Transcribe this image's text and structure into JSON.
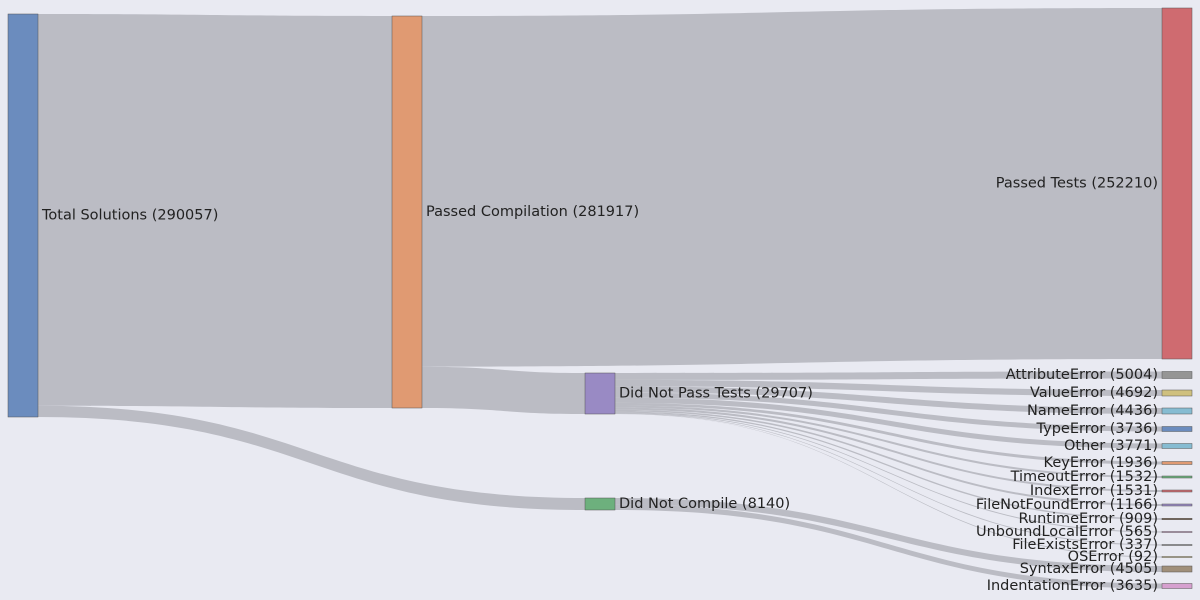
{
  "chart_data": {
    "type": "sankey",
    "title": "",
    "nodes": [
      {
        "id": "total",
        "label": "Total Solutions (290057)",
        "value": 290057,
        "color": "#6b8cbe"
      },
      {
        "id": "compiled",
        "label": "Passed Compilation (281917)",
        "value": 281917,
        "color": "#e09a72"
      },
      {
        "id": "not_compiled",
        "label": "Did Not Compile (8140)",
        "value": 8140,
        "color": "#6db07d"
      },
      {
        "id": "passed",
        "label": "Passed Tests (252210)",
        "value": 252210,
        "color": "#cf6b70"
      },
      {
        "id": "failed",
        "label": "Did Not Pass Tests (29707)",
        "value": 29707,
        "color": "#998ac4"
      },
      {
        "id": "attribute",
        "label": "AttributeError (5004)",
        "value": 5004,
        "color": "#959595"
      },
      {
        "id": "value",
        "label": "ValueError (4692)",
        "value": 4692,
        "color": "#cfc07e"
      },
      {
        "id": "name",
        "label": "NameError (4436)",
        "value": 4436,
        "color": "#86bcd2"
      },
      {
        "id": "type",
        "label": "TypeError (3736)",
        "value": 3736,
        "color": "#6b8cbe"
      },
      {
        "id": "other",
        "label": "Other (3771)",
        "value": 3771,
        "color": "#86bcd2"
      },
      {
        "id": "key",
        "label": "KeyError (1936)",
        "value": 1936,
        "color": "#e09a72"
      },
      {
        "id": "timeout",
        "label": "TimeoutError (1532)",
        "value": 1532,
        "color": "#6db07d"
      },
      {
        "id": "index",
        "label": "IndexError (1531)",
        "value": 1531,
        "color": "#cf6b70"
      },
      {
        "id": "filenotfound",
        "label": "FileNotFoundError (1166)",
        "value": 1166,
        "color": "#998ac4"
      },
      {
        "id": "runtime",
        "label": "RuntimeError (909)",
        "value": 909,
        "color": "#8a7768"
      },
      {
        "id": "unbound",
        "label": "UnboundLocalError (565)",
        "value": 565,
        "color": "#d6a0cf"
      },
      {
        "id": "fileexists",
        "label": "FileExistsError (337)",
        "value": 337,
        "color": "#959595"
      },
      {
        "id": "os",
        "label": "OSError (92)",
        "value": 92,
        "color": "#cfc07e"
      },
      {
        "id": "syntax",
        "label": "SyntaxError (4505)",
        "value": 4505,
        "color": "#a08f7a"
      },
      {
        "id": "indentation",
        "label": "IndentationError (3635)",
        "value": 3635,
        "color": "#d6a0cf"
      }
    ],
    "links": [
      {
        "source": "total",
        "target": "compiled",
        "value": 281917
      },
      {
        "source": "total",
        "target": "not_compiled",
        "value": 8140
      },
      {
        "source": "compiled",
        "target": "passed",
        "value": 252210
      },
      {
        "source": "compiled",
        "target": "failed",
        "value": 29707
      },
      {
        "source": "failed",
        "target": "attribute",
        "value": 5004
      },
      {
        "source": "failed",
        "target": "value",
        "value": 4692
      },
      {
        "source": "failed",
        "target": "name",
        "value": 4436
      },
      {
        "source": "failed",
        "target": "type",
        "value": 3736
      },
      {
        "source": "failed",
        "target": "other",
        "value": 3771
      },
      {
        "source": "failed",
        "target": "key",
        "value": 1936
      },
      {
        "source": "failed",
        "target": "timeout",
        "value": 1532
      },
      {
        "source": "failed",
        "target": "index",
        "value": 1531
      },
      {
        "source": "failed",
        "target": "filenotfound",
        "value": 1166
      },
      {
        "source": "failed",
        "target": "runtime",
        "value": 909
      },
      {
        "source": "failed",
        "target": "unbound",
        "value": 565
      },
      {
        "source": "failed",
        "target": "fileexists",
        "value": 337
      },
      {
        "source": "failed",
        "target": "os",
        "value": 92
      },
      {
        "source": "not_compiled",
        "target": "syntax",
        "value": 4505
      },
      {
        "source": "not_compiled",
        "target": "indentation",
        "value": 3635
      }
    ]
  }
}
